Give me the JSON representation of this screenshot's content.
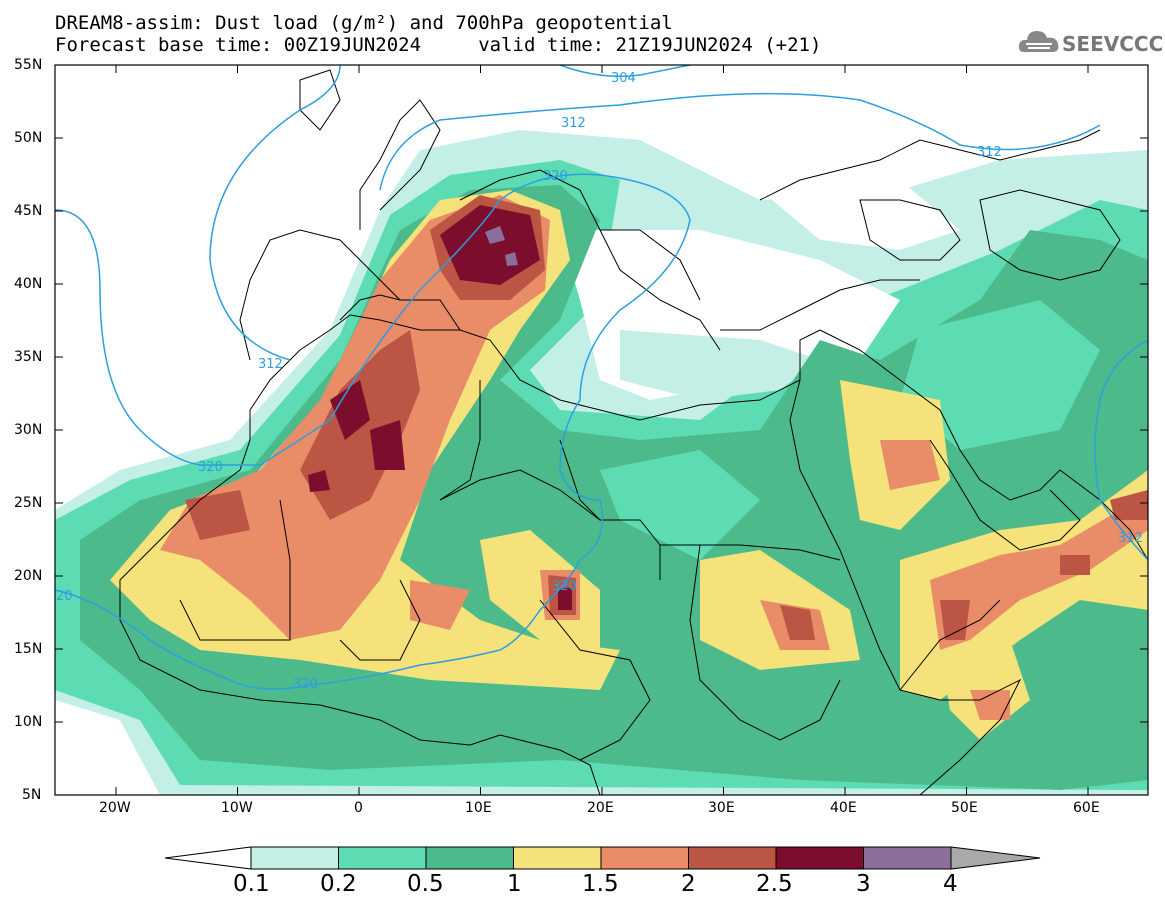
{
  "header": {
    "title_line1": "DREAM8-assim: Dust load (g/m²) and 700hPa geopotential",
    "title_line2": "Forecast base time: 00Z19JUN2024     valid time: 21Z19JUN2024 (+21)",
    "logo_text": "SEEVCCC"
  },
  "axes": {
    "lat_labels": [
      "55N",
      "50N",
      "45N",
      "40N",
      "35N",
      "30N",
      "25N",
      "20N",
      "15N",
      "10N",
      "5N"
    ],
    "lon_labels": [
      "20W",
      "10W",
      "0",
      "10E",
      "20E",
      "30E",
      "40E",
      "50E",
      "60E"
    ]
  },
  "contours": {
    "labels": [
      "304",
      "312",
      "320",
      "312",
      "312",
      "320",
      "320",
      "320",
      "312",
      "20"
    ]
  },
  "colorbar": {
    "labels": [
      "0.1",
      "0.2",
      "0.5",
      "1",
      "1.5",
      "2",
      "2.5",
      "3",
      "4"
    ],
    "colors": [
      "#ffffff",
      "#c3efe6",
      "#5ddcb4",
      "#4dba8c",
      "#f5e27a",
      "#e98c68",
      "#bb5544",
      "#7d0d2d",
      "#8c6e9a",
      "#a9a9a9"
    ]
  }
}
